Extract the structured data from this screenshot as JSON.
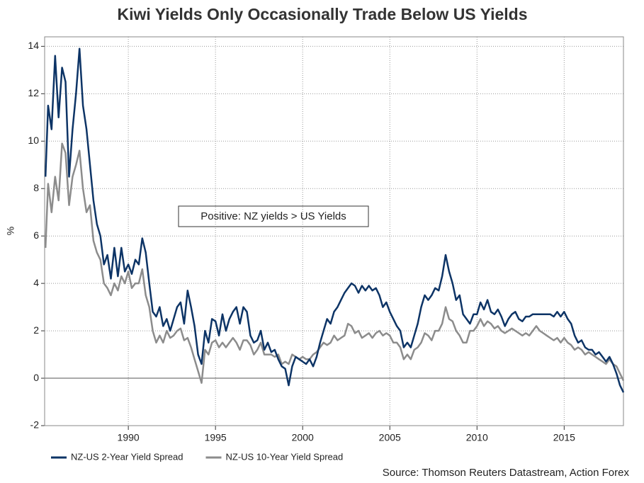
{
  "chart_data": {
    "type": "line",
    "title": "Kiwi Yields Only Occasionally Trade Below US Yields",
    "y_label": "%",
    "annotation": "Positive: NZ yields > US Yields",
    "source": "Source: Thomson Reuters Datastream, Action Forex",
    "xlim": [
      1985.2,
      2018.4
    ],
    "xticks": [
      1990,
      1995,
      2000,
      2005,
      2010,
      2015
    ],
    "ylim": [
      -2,
      14.4
    ],
    "yticks": [
      -2,
      0,
      2,
      4,
      6,
      8,
      10,
      12,
      14
    ],
    "grid": true,
    "legend": "bottom-left",
    "x": [
      1985.25,
      1985.4,
      1985.6,
      1985.8,
      1986.0,
      1986.2,
      1986.4,
      1986.6,
      1986.8,
      1987.0,
      1987.2,
      1987.4,
      1987.6,
      1987.8,
      1988.0,
      1988.2,
      1988.4,
      1988.6,
      1988.8,
      1989.0,
      1989.2,
      1989.4,
      1989.6,
      1989.8,
      1990.0,
      1990.2,
      1990.4,
      1990.6,
      1990.8,
      1991.0,
      1991.2,
      1991.4,
      1991.6,
      1991.8,
      1992.0,
      1992.2,
      1992.4,
      1992.6,
      1992.8,
      1993.0,
      1993.2,
      1993.4,
      1993.6,
      1993.8,
      1994.0,
      1994.2,
      1994.4,
      1994.6,
      1994.8,
      1995.0,
      1995.2,
      1995.4,
      1995.6,
      1995.8,
      1996.0,
      1996.2,
      1996.4,
      1996.6,
      1996.8,
      1997.0,
      1997.2,
      1997.4,
      1997.6,
      1997.8,
      1998.0,
      1998.2,
      1998.4,
      1998.6,
      1998.8,
      1999.0,
      1999.2,
      1999.4,
      1999.6,
      1999.8,
      2000.0,
      2000.2,
      2000.4,
      2000.6,
      2000.8,
      2001.0,
      2001.2,
      2001.4,
      2001.6,
      2001.8,
      2002.0,
      2002.2,
      2002.4,
      2002.6,
      2002.8,
      2003.0,
      2003.2,
      2003.4,
      2003.6,
      2003.8,
      2004.0,
      2004.2,
      2004.4,
      2004.6,
      2004.8,
      2005.0,
      2005.2,
      2005.4,
      2005.6,
      2005.8,
      2006.0,
      2006.2,
      2006.4,
      2006.6,
      2006.8,
      2007.0,
      2007.2,
      2007.4,
      2007.6,
      2007.8,
      2008.0,
      2008.2,
      2008.4,
      2008.6,
      2008.8,
      2009.0,
      2009.2,
      2009.4,
      2009.6,
      2009.8,
      2010.0,
      2010.2,
      2010.4,
      2010.6,
      2010.8,
      2011.0,
      2011.2,
      2011.4,
      2011.6,
      2011.8,
      2012.0,
      2012.2,
      2012.4,
      2012.6,
      2012.8,
      2013.0,
      2013.2,
      2013.4,
      2013.6,
      2013.8,
      2014.0,
      2014.2,
      2014.4,
      2014.6,
      2014.8,
      2015.0,
      2015.2,
      2015.4,
      2015.6,
      2015.8,
      2016.0,
      2016.2,
      2016.4,
      2016.6,
      2016.8,
      2017.0,
      2017.2,
      2017.4,
      2017.6,
      2017.8,
      2018.0,
      2018.2,
      2018.4
    ],
    "series": [
      {
        "name": "NZ-US 2-Year Yield Spread",
        "color": "#0d3466",
        "values": [
          8.5,
          11.5,
          10.5,
          13.6,
          11.0,
          13.1,
          12.5,
          8.5,
          10.5,
          12.0,
          13.9,
          11.5,
          10.5,
          9.0,
          7.5,
          6.5,
          6.0,
          4.8,
          5.2,
          4.2,
          5.5,
          4.3,
          5.5,
          4.5,
          4.8,
          4.4,
          5.0,
          4.8,
          5.9,
          5.3,
          4.0,
          2.8,
          2.6,
          3.0,
          2.2,
          2.5,
          2.0,
          2.5,
          3.0,
          3.2,
          2.3,
          3.7,
          3.0,
          2.2,
          1.0,
          0.6,
          2.0,
          1.5,
          2.5,
          2.4,
          1.8,
          2.7,
          2.0,
          2.5,
          2.8,
          3.0,
          2.3,
          3.0,
          2.8,
          1.8,
          1.5,
          1.6,
          2.0,
          1.2,
          1.5,
          1.1,
          1.2,
          0.8,
          0.5,
          0.4,
          -0.3,
          0.5,
          0.9,
          0.8,
          0.7,
          0.6,
          0.8,
          0.5,
          0.9,
          1.5,
          2.0,
          2.5,
          2.3,
          2.8,
          3.0,
          3.3,
          3.6,
          3.8,
          4.0,
          3.9,
          3.6,
          3.9,
          3.7,
          3.9,
          3.7,
          3.8,
          3.5,
          3.0,
          3.2,
          2.8,
          2.5,
          2.2,
          2.0,
          1.3,
          1.5,
          1.3,
          1.8,
          2.3,
          3.0,
          3.5,
          3.3,
          3.5,
          3.8,
          3.7,
          4.3,
          5.2,
          4.5,
          4.0,
          3.3,
          3.5,
          2.7,
          2.5,
          2.3,
          2.7,
          2.7,
          3.2,
          2.9,
          3.3,
          2.8,
          2.7,
          2.9,
          2.6,
          2.2,
          2.5,
          2.7,
          2.8,
          2.5,
          2.4,
          2.6,
          2.6,
          2.7,
          2.7,
          2.7,
          2.7,
          2.7,
          2.7,
          2.6,
          2.8,
          2.6,
          2.8,
          2.5,
          2.3,
          1.8,
          1.5,
          1.6,
          1.3,
          1.2,
          1.2,
          1.0,
          1.1,
          0.9,
          0.7,
          0.9,
          0.6,
          0.2,
          -0.3,
          -0.6
        ]
      },
      {
        "name": "NZ-US 10-Year Yield Spread",
        "color": "#8c8c8c",
        "values": [
          5.5,
          8.2,
          7.0,
          8.5,
          7.5,
          9.9,
          9.5,
          7.3,
          8.5,
          9.0,
          9.6,
          8.0,
          7.0,
          7.3,
          5.8,
          5.3,
          5.0,
          4.0,
          3.8,
          3.5,
          4.0,
          3.7,
          4.3,
          4.0,
          4.5,
          3.8,
          4.0,
          4.0,
          4.6,
          3.5,
          3.0,
          2.0,
          1.5,
          1.8,
          1.5,
          2.0,
          1.7,
          1.8,
          2.0,
          2.1,
          1.6,
          1.7,
          1.3,
          0.8,
          0.3,
          -0.2,
          1.2,
          1.0,
          1.5,
          1.6,
          1.3,
          1.5,
          1.3,
          1.5,
          1.7,
          1.5,
          1.2,
          1.6,
          1.6,
          1.4,
          1.0,
          1.2,
          1.5,
          1.0,
          1.0,
          1.0,
          0.9,
          1.0,
          0.6,
          0.7,
          0.6,
          1.0,
          0.9,
          0.8,
          0.9,
          0.8,
          0.8,
          1.0,
          1.1,
          1.3,
          1.5,
          1.4,
          1.5,
          1.8,
          1.6,
          1.7,
          1.8,
          2.3,
          2.2,
          1.9,
          2.0,
          1.7,
          1.8,
          1.9,
          1.7,
          1.9,
          2.0,
          1.8,
          1.9,
          1.8,
          1.5,
          1.5,
          1.3,
          0.8,
          1.0,
          0.8,
          1.2,
          1.3,
          1.5,
          1.9,
          1.8,
          1.6,
          2.0,
          2.0,
          2.3,
          3.0,
          2.5,
          2.4,
          2.0,
          1.8,
          1.5,
          1.5,
          2.0,
          2.0,
          2.2,
          2.5,
          2.2,
          2.4,
          2.3,
          2.1,
          2.2,
          2.0,
          1.9,
          2.0,
          2.1,
          2.0,
          1.9,
          1.8,
          1.9,
          1.8,
          2.0,
          2.2,
          2.0,
          1.9,
          1.8,
          1.7,
          1.6,
          1.7,
          1.5,
          1.7,
          1.5,
          1.4,
          1.2,
          1.3,
          1.2,
          1.0,
          1.1,
          1.0,
          0.9,
          0.8,
          0.7,
          0.6,
          0.8,
          0.6,
          0.5,
          0.2,
          -0.1
        ]
      }
    ]
  }
}
